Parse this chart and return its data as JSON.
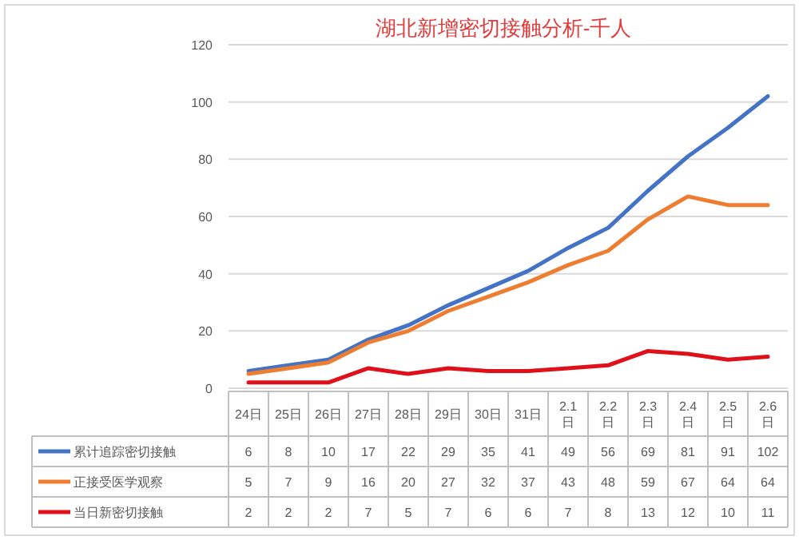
{
  "chart_data": {
    "type": "line",
    "title": "湖北新增密切接触分析-千人",
    "categories": [
      "24日",
      "25日",
      "26日",
      "27日",
      "28日",
      "29日",
      "30日",
      "31日",
      "2.1日",
      "2.2日",
      "2.3日",
      "2.4日",
      "2.5日",
      "2.6日"
    ],
    "series": [
      {
        "name": "累计追踪密切接触",
        "color": "#4472c4",
        "values": [
          6,
          8,
          10,
          17,
          22,
          29,
          35,
          41,
          49,
          56,
          69,
          81,
          91,
          102
        ]
      },
      {
        "name": "正接受医学观察",
        "color": "#ed7d31",
        "values": [
          5,
          7,
          9,
          16,
          20,
          27,
          32,
          37,
          43,
          48,
          59,
          67,
          64,
          64
        ]
      },
      {
        "name": "当日新密切接触",
        "color": "#e0101a",
        "values": [
          2,
          2,
          2,
          7,
          5,
          7,
          6,
          6,
          7,
          8,
          13,
          12,
          10,
          11
        ]
      }
    ],
    "ylim": [
      0,
      120
    ],
    "yticks": [
      0,
      20,
      40,
      60,
      80,
      100,
      120
    ],
    "grid": "y",
    "legend": "bottom",
    "data_labels": true,
    "marker": "none",
    "line_style": "solid"
  }
}
